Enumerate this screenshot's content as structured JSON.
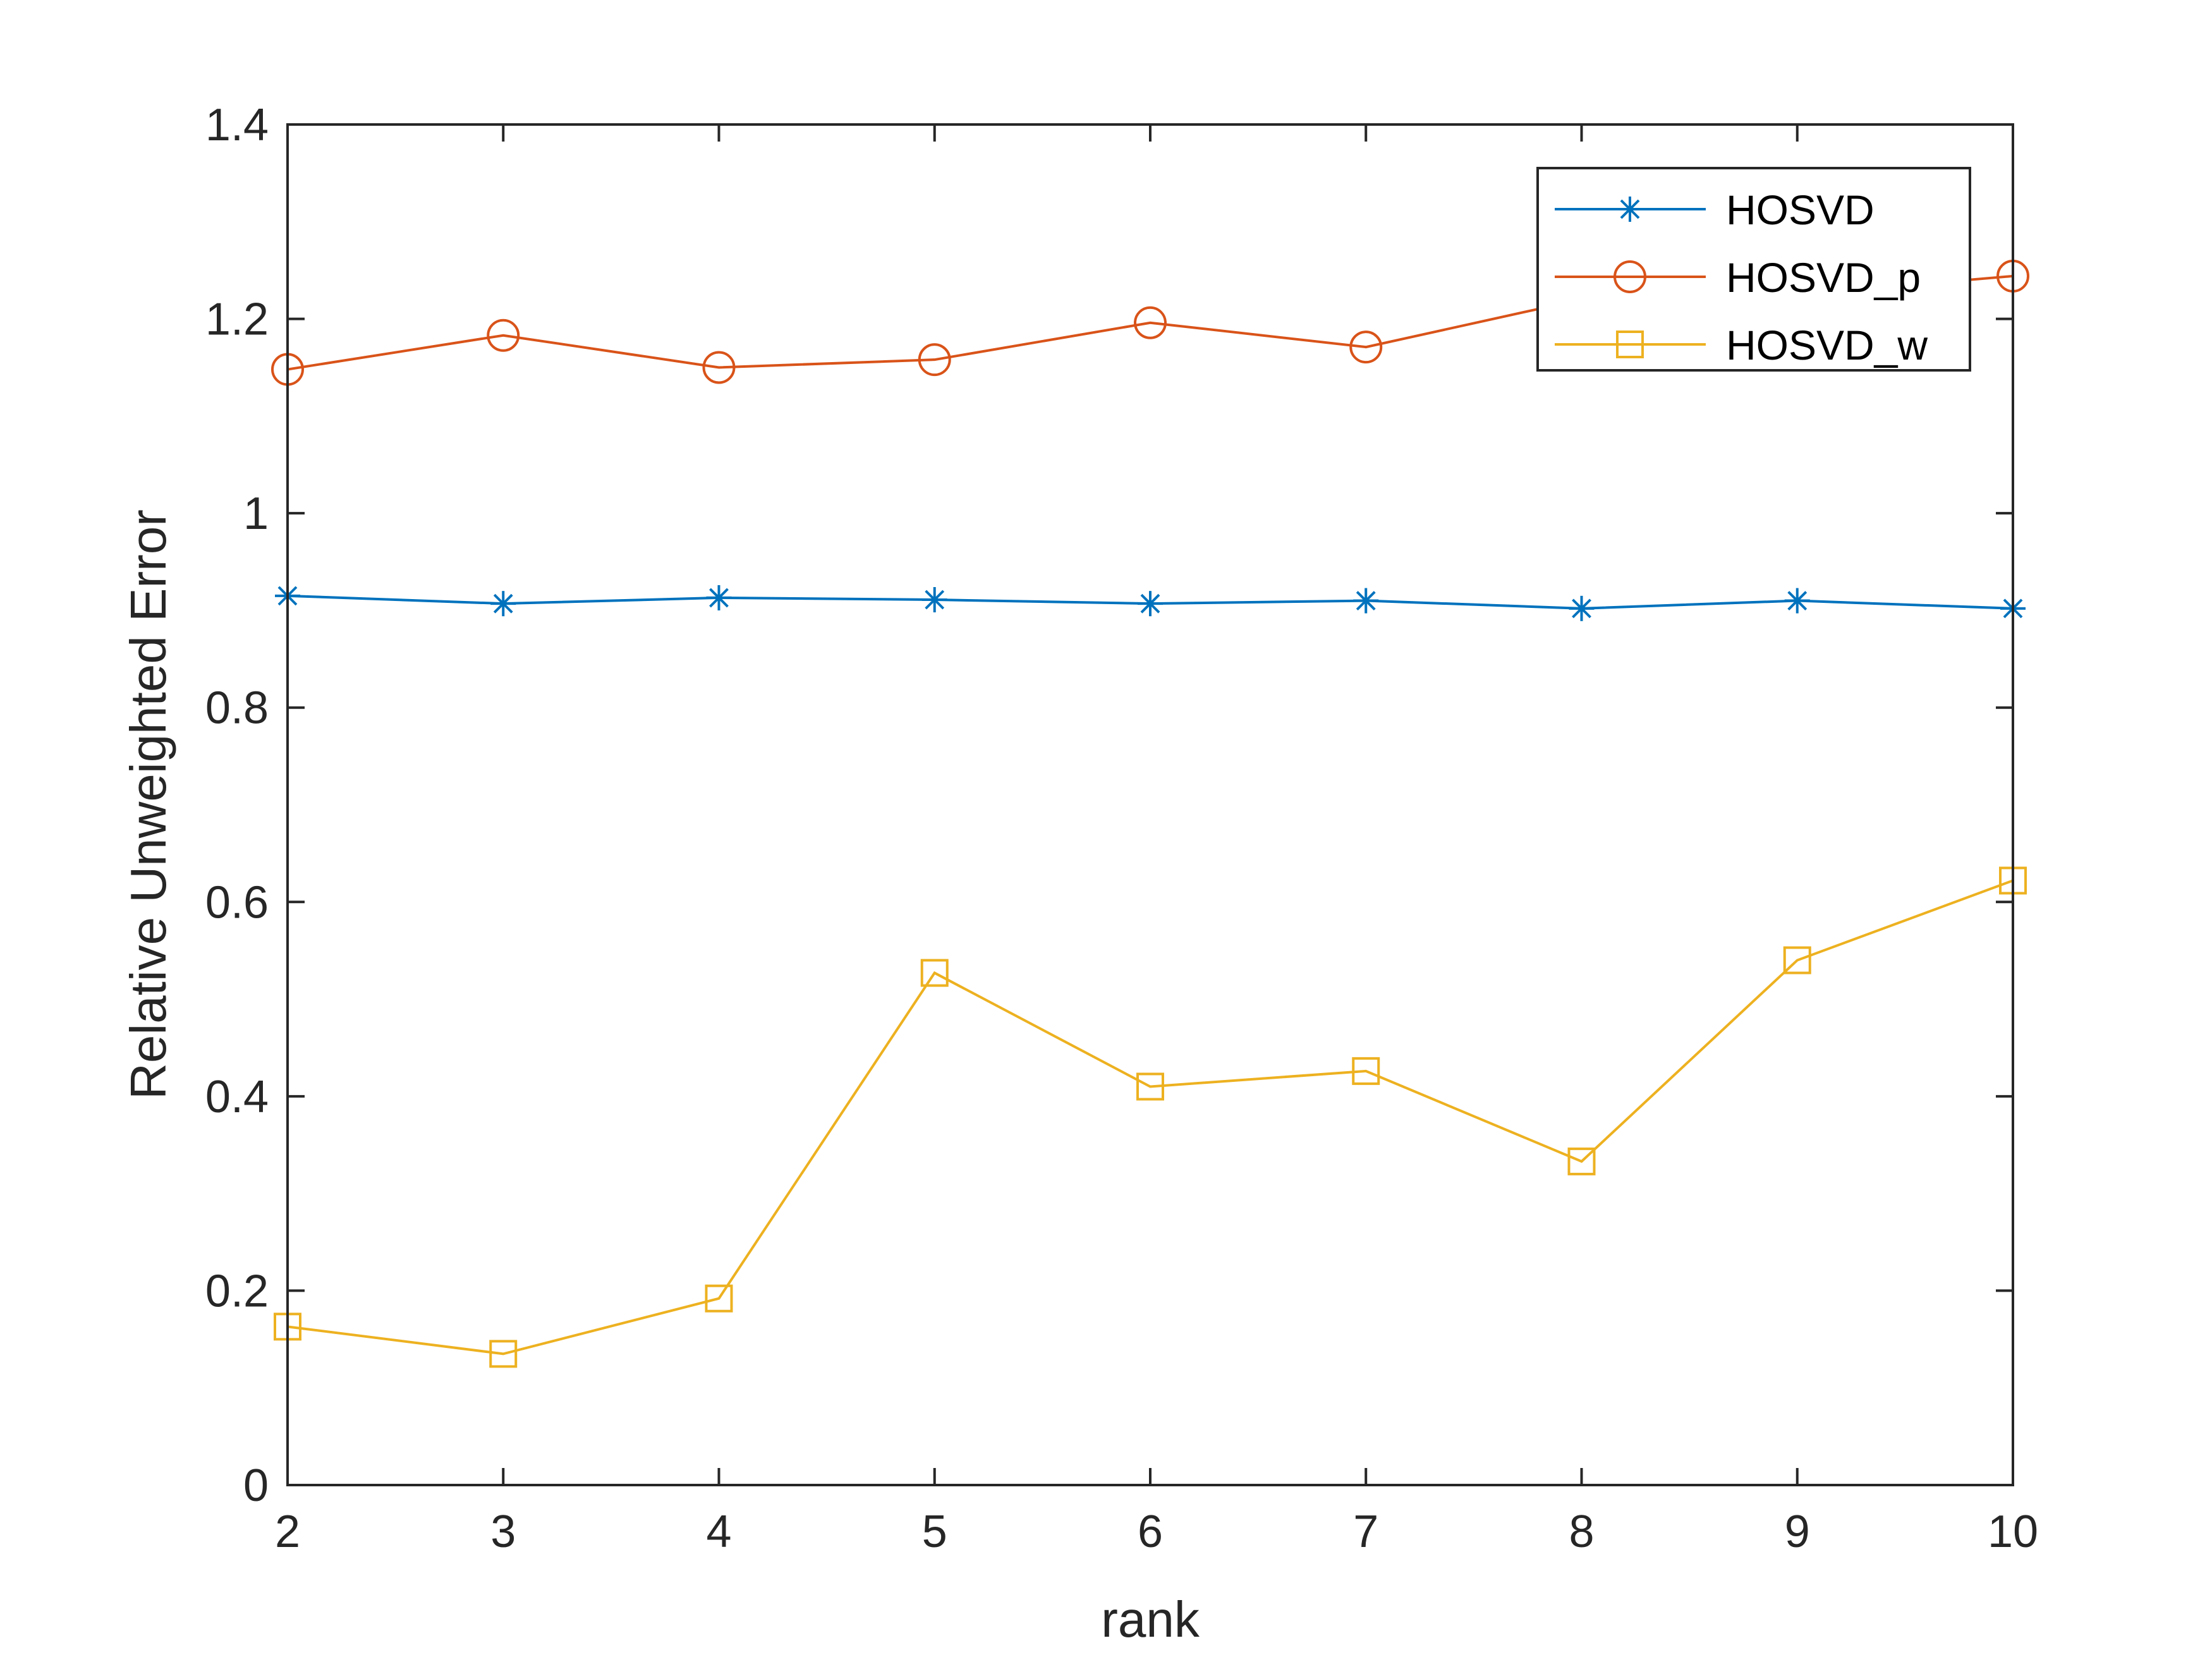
{
  "chart_data": {
    "type": "line",
    "title": "",
    "xlabel": "rank",
    "ylabel": "Relative Unweighted Error",
    "xlim": [
      2,
      10
    ],
    "ylim": [
      0,
      1.4
    ],
    "xticks": [
      2,
      3,
      4,
      5,
      6,
      7,
      8,
      9,
      10
    ],
    "xtick_labels": [
      "2",
      "3",
      "4",
      "5",
      "6",
      "7",
      "8",
      "9",
      "10"
    ],
    "yticks": [
      0,
      0.2,
      0.4,
      0.6,
      0.8,
      1.0,
      1.2,
      1.4
    ],
    "ytick_labels": [
      "0",
      "0.2",
      "0.4",
      "0.6",
      "0.8",
      "1",
      "1.2",
      "1.4"
    ],
    "grid": false,
    "legend_position": "top-right",
    "x": [
      2,
      3,
      4,
      5,
      6,
      7,
      8,
      9,
      10
    ],
    "series": [
      {
        "name": "HOSVD",
        "color": "#0072BD",
        "marker": "asterisk",
        "values": [
          0.915,
          0.907,
          0.913,
          0.911,
          0.907,
          0.91,
          0.902,
          0.91,
          0.902
        ]
      },
      {
        "name": "HOSVD_p",
        "color": "#D95319",
        "marker": "circle",
        "values": [
          1.148,
          1.183,
          1.15,
          1.158,
          1.196,
          1.171,
          1.22,
          1.225,
          1.244
        ]
      },
      {
        "name": "HOSVD_w",
        "color": "#EDB120",
        "marker": "square",
        "values": [
          0.163,
          0.135,
          0.192,
          0.527,
          0.41,
          0.426,
          0.333,
          0.54,
          0.622
        ]
      }
    ]
  }
}
